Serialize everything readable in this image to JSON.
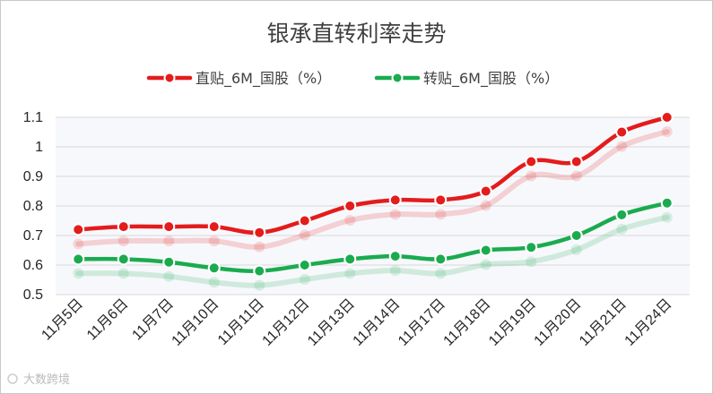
{
  "chart_data": {
    "type": "line",
    "title": "银承直转利率走势",
    "categories": [
      "11月5日",
      "11月6日",
      "11月7日",
      "11月10日",
      "11月11日",
      "11月12日",
      "11月13日",
      "11月14日",
      "11月17日",
      "11月18日",
      "11月19日",
      "11月20日",
      "11月21日",
      "11月24日"
    ],
    "ylim": [
      0.5,
      1.1
    ],
    "yticks": [
      "0.5",
      "0.6",
      "0.7",
      "0.8",
      "0.9",
      "1",
      "1.1"
    ],
    "series": [
      {
        "name": "直贴_6M_国股（%）",
        "color": "#e31c1c",
        "values": [
          0.72,
          0.73,
          0.73,
          0.73,
          0.71,
          0.75,
          0.8,
          0.82,
          0.82,
          0.85,
          0.95,
          0.95,
          1.05,
          1.1
        ]
      },
      {
        "name": "转贴_6M_国股（%）",
        "color": "#1aab4f",
        "values": [
          0.62,
          0.62,
          0.61,
          0.59,
          0.58,
          0.6,
          0.62,
          0.63,
          0.62,
          0.65,
          0.66,
          0.7,
          0.77,
          0.81
        ]
      }
    ]
  },
  "watermark": "大数跨境"
}
